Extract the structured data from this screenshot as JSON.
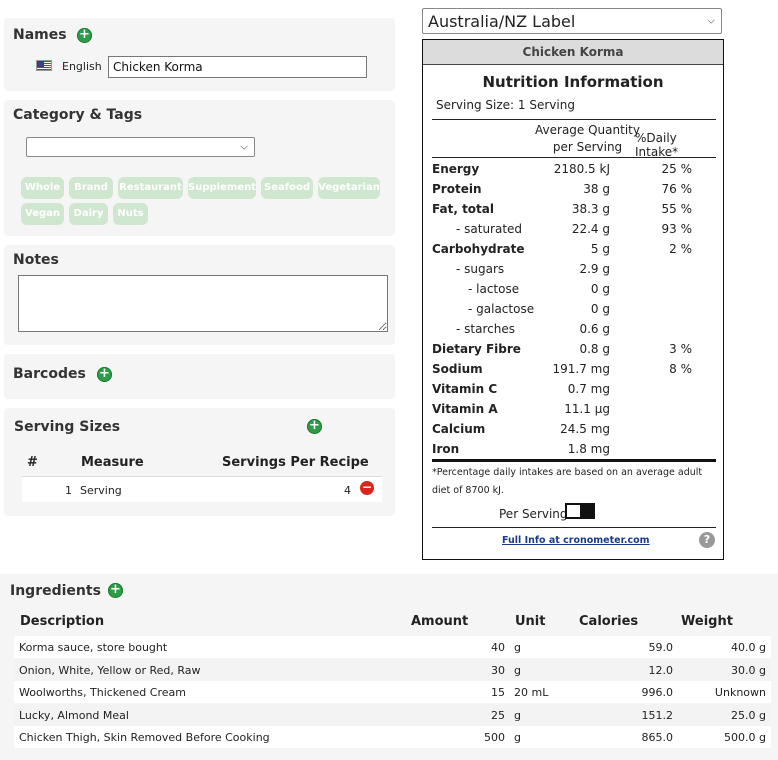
{
  "names": {
    "title": "Names",
    "language": "English",
    "value": "Chicken Korma"
  },
  "category": {
    "title": "Category & Tags",
    "selected": "",
    "tags": [
      "Whole",
      "Brand",
      "Restaurant",
      "Supplement",
      "Seafood",
      "Vegetarian",
      "Vegan",
      "Dairy",
      "Nuts"
    ]
  },
  "notes": {
    "title": "Notes",
    "value": ""
  },
  "barcodes": {
    "title": "Barcodes"
  },
  "serving_sizes": {
    "title": "Serving Sizes",
    "headers": {
      "num": "#",
      "measure": "Measure",
      "per_recipe": "Servings Per Recipe"
    },
    "rows": [
      {
        "num": "1",
        "measure": "Serving",
        "per_recipe": "4"
      }
    ]
  },
  "label": {
    "format_select": "Australia/NZ Label",
    "food_name": "Chicken Korma",
    "title": "Nutrition Information",
    "serving_size": "Serving Size: 1 Serving",
    "col_avg": "Average Quantity",
    "col_avg2": "per Serving",
    "col_dv": "%Daily Intake*",
    "rows": [
      {
        "name": "Energy",
        "qty": "2180.5 kJ",
        "dv": "25 %",
        "bold": true
      },
      {
        "name": "Protein",
        "qty": "38 g",
        "dv": "76 %",
        "bold": true
      },
      {
        "name": "Fat, total",
        "qty": "38.3 g",
        "dv": "55 %",
        "bold": true
      },
      {
        "name": "- saturated",
        "qty": "22.4 g",
        "dv": "93 %",
        "indent": 1
      },
      {
        "name": "Carbohydrate",
        "qty": "5 g",
        "dv": "2 %",
        "bold": true
      },
      {
        "name": "- sugars",
        "qty": "2.9 g",
        "dv": "",
        "indent": 1
      },
      {
        "name": "- lactose",
        "qty": "0 g",
        "dv": "",
        "indent": 2
      },
      {
        "name": "- galactose",
        "qty": "0 g",
        "dv": "",
        "indent": 2
      },
      {
        "name": "- starches",
        "qty": "0.6 g",
        "dv": "",
        "indent": 1
      },
      {
        "name": "Dietary Fibre",
        "qty": "0.8 g",
        "dv": "3 %",
        "bold": true
      },
      {
        "name": "Sodium",
        "qty": "191.7 mg",
        "dv": "8 %",
        "bold": true
      },
      {
        "name": "Vitamin C",
        "qty": "0.7 mg",
        "dv": "",
        "bold": true
      },
      {
        "name": "Vitamin A",
        "qty": "11.1 μg",
        "dv": "",
        "bold": true
      },
      {
        "name": "Calcium",
        "qty": "24.5 mg",
        "dv": "",
        "bold": true
      },
      {
        "name": "Iron",
        "qty": "1.8 mg",
        "dv": "",
        "bold": true
      }
    ],
    "footnote": "*Percentage daily intakes are based on an average adult diet of 8700 kJ.",
    "toggle_label": "Per Serving",
    "full_info_link": "Full Info at cronometer.com"
  },
  "ingredients": {
    "title": "Ingredients",
    "headers": {
      "desc": "Description",
      "amount": "Amount",
      "unit": "Unit",
      "calories": "Calories",
      "weight": "Weight"
    },
    "rows": [
      {
        "desc": "Korma sauce, store bought",
        "amount": "40",
        "unit": "g",
        "calories": "59.0",
        "weight": "40.0 g"
      },
      {
        "desc": "Onion, White, Yellow or Red, Raw",
        "amount": "30",
        "unit": "g",
        "calories": "12.0",
        "weight": "30.0 g"
      },
      {
        "desc": "Woolworths, Thickened Cream",
        "amount": "15",
        "unit": "20 mL",
        "calories": "996.0",
        "weight": "Unknown"
      },
      {
        "desc": "Lucky, Almond Meal",
        "amount": "25",
        "unit": "g",
        "calories": "151.2",
        "weight": "25.0 g"
      },
      {
        "desc": "Chicken Thigh, Skin Removed Before Cooking",
        "amount": "500",
        "unit": "g",
        "calories": "865.0",
        "weight": "500.0 g"
      }
    ]
  },
  "colors": {
    "add": "#2e9c46",
    "remove": "#d9261c",
    "tag": "#cfe6cf",
    "panel": "#f5f5f5"
  }
}
